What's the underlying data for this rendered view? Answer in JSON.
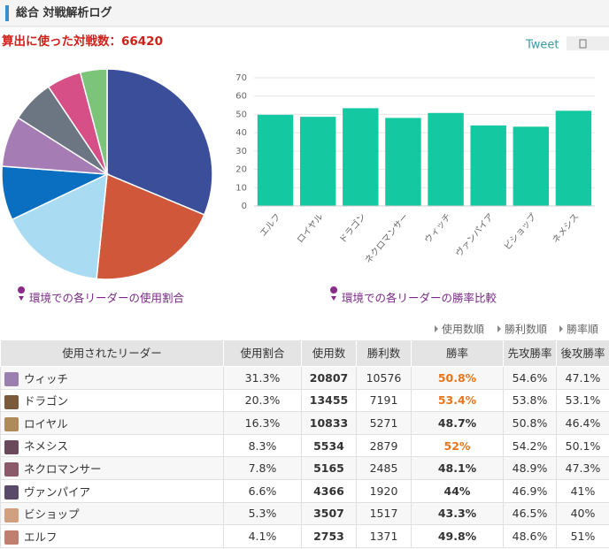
{
  "header": {
    "title": "総合 対戦解析ログ",
    "battle_count": "算出に使った対戦数：66420",
    "tweet": "Tweet"
  },
  "chart_data": [
    {
      "type": "pie",
      "caption": "環境での各リーダーの使用割合",
      "values": [
        31.3,
        20.3,
        16.3,
        8.3,
        7.8,
        6.6,
        5.3,
        4.1
      ],
      "colors": [
        "#3a4e9a",
        "#d0573a",
        "#a9dcf3",
        "#0a6fc1",
        "#a57db4",
        "#6c7582",
        "#d64f87",
        "#7cc47a"
      ]
    },
    {
      "type": "bar",
      "caption": "環境での各リーダーの勝率比較",
      "categories": [
        "エルフ",
        "ロイヤル",
        "ドラゴン",
        "ネクロマンサー",
        "ウィッチ",
        "ヴァンパイア",
        "ビショップ",
        "ネメシス"
      ],
      "values": [
        49.8,
        48.7,
        53.4,
        48.1,
        50.8,
        44,
        43.3,
        52
      ],
      "color": "#14c9a2",
      "ylim": [
        0,
        70
      ],
      "yticks": [
        0,
        10,
        20,
        30,
        40,
        50,
        60,
        70
      ],
      "grid": true
    }
  ],
  "sort_links": [
    "使用数順",
    "勝利数順",
    "勝率順"
  ],
  "table": {
    "highlight_color": "#e8751a",
    "columns": [
      "使用されたリーダー",
      "使用割合",
      "使用数",
      "勝利数",
      "勝率",
      "先攻勝率",
      "後攻勝率"
    ],
    "rows": [
      {
        "cells": [
          "ウィッチ",
          "31.3%",
          "20807",
          "10576",
          "50.8%",
          "54.6%",
          "47.1%"
        ],
        "highlighted": true
      },
      {
        "cells": [
          "ドラゴン",
          "20.3%",
          "13455",
          "7191",
          "53.4%",
          "53.8%",
          "53.1%"
        ],
        "highlighted": true
      },
      {
        "cells": [
          "ロイヤル",
          "16.3%",
          "10833",
          "5271",
          "48.7%",
          "50.8%",
          "46.4%"
        ],
        "highlighted": false
      },
      {
        "cells": [
          "ネメシス",
          "8.3%",
          "5534",
          "2879",
          "52%",
          "54.2%",
          "50.1%"
        ],
        "highlighted": true
      },
      {
        "cells": [
          "ネクロマンサー",
          "7.8%",
          "5165",
          "2485",
          "48.1%",
          "48.9%",
          "47.3%"
        ],
        "highlighted": false
      },
      {
        "cells": [
          "ヴァンパイア",
          "6.6%",
          "4366",
          "1920",
          "44%",
          "46.9%",
          "41%"
        ],
        "highlighted": false
      },
      {
        "cells": [
          "ビショップ",
          "5.3%",
          "3507",
          "1517",
          "43.3%",
          "46.5%",
          "40%"
        ],
        "highlighted": false
      },
      {
        "cells": [
          "エルフ",
          "4.1%",
          "2753",
          "1371",
          "49.8%",
          "48.6%",
          "51%"
        ],
        "highlighted": false
      }
    ]
  }
}
